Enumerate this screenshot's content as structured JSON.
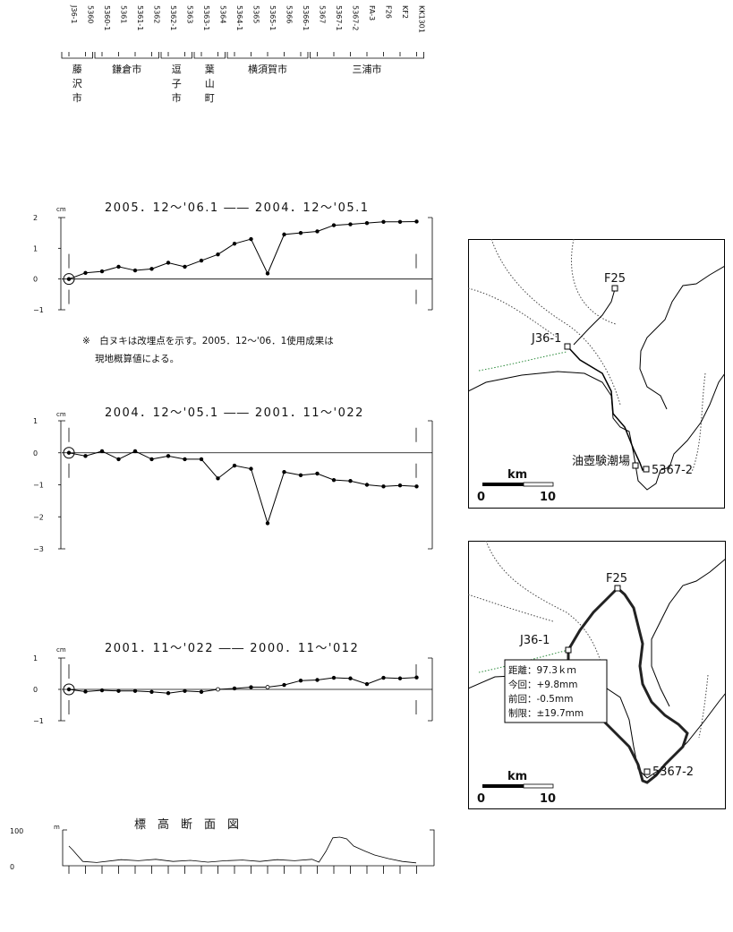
{
  "stations": [
    "J36-1",
    "5360",
    "5360-1",
    "5361",
    "5361-1",
    "5362",
    "5362-1",
    "5363",
    "5363-1",
    "5364",
    "5364-1",
    "5365",
    "5365-1",
    "5366",
    "5366-1",
    "5367",
    "5367-1",
    "5367-2",
    "FA-3",
    "F26",
    "KF2",
    "KK1301"
  ],
  "municipalities": [
    {
      "name": "藤沢市",
      "lines": [
        "藤",
        "沢",
        "市"
      ]
    },
    {
      "name": "鎌倉市",
      "lines": [
        "鎌倉市"
      ]
    },
    {
      "name": "逗子市",
      "lines": [
        "逗",
        "子",
        "市"
      ]
    },
    {
      "name": "葉山町",
      "lines": [
        "葉",
        "山",
        "町"
      ]
    },
    {
      "name": "横須賀市",
      "lines": [
        "横須賀市"
      ]
    },
    {
      "name": "三浦市",
      "lines": [
        "三浦市"
      ]
    }
  ],
  "note": {
    "line1": "※　白ヌキは改埋点を示す。2005．12～'06．1使用成果は",
    "line2": "現地概算値による。"
  },
  "chart_data": [
    {
      "type": "line",
      "title": "2005．12～'06.1 ―― 2004．12～'05.1",
      "unit": "cm",
      "yticks": [
        "2",
        "1",
        "0",
        "−1"
      ],
      "ylim": [
        -1,
        2
      ],
      "values": [
        0,
        0.2,
        0.25,
        0.4,
        0.28,
        0.33,
        0.53,
        0.4,
        0.6,
        0.8,
        1.15,
        1.3,
        0.18,
        1.45,
        1.5,
        1.55,
        1.75,
        1.78,
        1.82,
        1.86,
        1.86,
        1.87
      ],
      "hollow": []
    },
    {
      "type": "line",
      "title": "2004．12～'05.1 ―― 2001．11～'022",
      "unit": "cm",
      "yticks": [
        "1",
        "0",
        "−1",
        "−2",
        "−3"
      ],
      "ylim": [
        -3,
        1
      ],
      "values": [
        0,
        -0.1,
        0.05,
        -0.2,
        0.05,
        -0.2,
        -0.1,
        -0.2,
        -0.2,
        -0.8,
        -0.4,
        -0.5,
        -2.2,
        -0.6,
        -0.7,
        -0.65,
        -0.85,
        -0.88,
        -1.0,
        -1.05,
        -1.02,
        -1.05
      ],
      "hollow": []
    },
    {
      "type": "line",
      "title": "2001．11～'022 ―― 2000．11～'012",
      "unit": "cm",
      "yticks": [
        "1",
        "0",
        "−1"
      ],
      "ylim": [
        -1,
        1
      ],
      "values": [
        0,
        -0.07,
        -0.03,
        -0.05,
        -0.05,
        -0.08,
        -0.12,
        -0.05,
        -0.08,
        0,
        0.03,
        0.07,
        0.07,
        0.14,
        0.28,
        0.3,
        0.37,
        0.35,
        0.17,
        0.37,
        0.35,
        0.38
      ],
      "hollow": [
        9,
        12
      ]
    },
    {
      "type": "area",
      "title": "標　高　断　面　図",
      "unit": "m",
      "yticks": [
        "100",
        "0"
      ],
      "ylim": [
        0,
        100
      ],
      "x": [
        0,
        0.01,
        0.04,
        0.08,
        0.15,
        0.2,
        0.25,
        0.3,
        0.35,
        0.4,
        0.45,
        0.5,
        0.55,
        0.6,
        0.65,
        0.7,
        0.72,
        0.74,
        0.76,
        0.78,
        0.8,
        0.82,
        0.85,
        0.88,
        0.92,
        0.96,
        1.0
      ],
      "values": [
        55,
        45,
        12,
        9,
        17,
        14,
        18,
        12,
        15,
        10,
        14,
        16,
        12,
        17,
        14,
        18,
        10,
        40,
        78,
        80,
        75,
        55,
        42,
        30,
        20,
        12,
        8
      ]
    }
  ],
  "map1": {
    "label_f25": "F25",
    "label_j36": "J36-1",
    "label_tide": "油壺験潮場",
    "label_5367": "5367-2",
    "scale_unit": "km",
    "scale_min": "0",
    "scale_max": "10"
  },
  "map2": {
    "label_f25": "F25",
    "label_j36": "J36-1",
    "label_5367": "5367-2",
    "info": [
      "距離：97.3ｋｍ",
      "今回：+9.8mm",
      "前回：-0.5mm",
      "制限：±19.7mm"
    ],
    "scale_unit": "km",
    "scale_min": "0",
    "scale_max": "10"
  }
}
